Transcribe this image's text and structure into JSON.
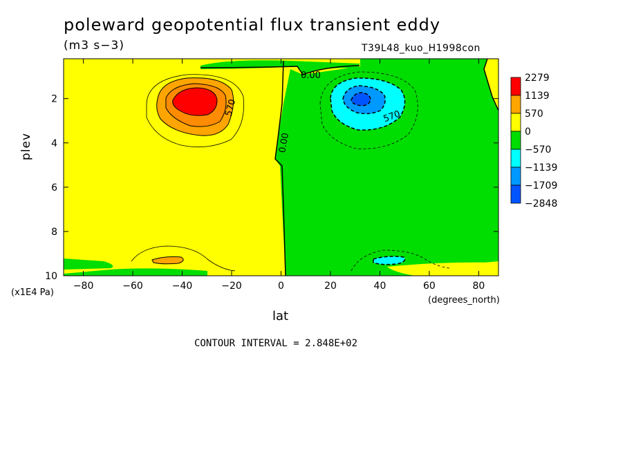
{
  "header": {
    "title": "poleward geopotential flux transient eddy",
    "units": "(m3 s−3)",
    "run_name": "T39L48_kuo_H1998con"
  },
  "footer": {
    "contour_interval": "CONTOUR INTERVAL = 2.848E+02"
  },
  "chart_data": {
    "type": "heatmap",
    "title": "poleward geopotential flux transient eddy",
    "xlabel": "lat",
    "x_units": "(degrees_north)",
    "ylabel": "plev",
    "y_units": "(x1E4 Pa)",
    "xlim": [
      -88,
      88
    ],
    "ylim": [
      10,
      0.2
    ],
    "x_ticks": [
      -80,
      -60,
      -40,
      -20,
      0,
      20,
      40,
      60,
      80
    ],
    "x_tick_labels": [
      "−80",
      "−60",
      "−40",
      "−20",
      "0",
      "20",
      "40",
      "60",
      "80"
    ],
    "y_ticks": [
      2,
      4,
      6,
      8,
      10
    ],
    "y_tick_labels": [
      "2",
      "4",
      "6",
      "8",
      "10"
    ],
    "colorbar": {
      "labels": [
        "2279",
        "1139",
        "570",
        "0",
        "−570",
        "−1139",
        "−1709",
        "−2848"
      ],
      "colors": [
        "#ff0000",
        "#ffa500",
        "#ffff00",
        "#00dd00",
        "#00ffff",
        "#0099ff",
        "#0055ff"
      ]
    },
    "contour_labels": [
      "0.00",
      "0.00",
      "570",
      "570"
    ],
    "features": [
      {
        "sign": "positive",
        "lat": -33,
        "plev": 2.0,
        "peak": 2279
      },
      {
        "sign": "negative",
        "lat": 33,
        "plev": 2.0,
        "peak": -2000
      },
      {
        "sign": "positive",
        "lat": -44,
        "plev": 9.2,
        "peak": 600
      },
      {
        "sign": "negative",
        "lat": 40,
        "plev": 9.2,
        "peak": -700
      }
    ],
    "contour_interval": 284.8
  }
}
